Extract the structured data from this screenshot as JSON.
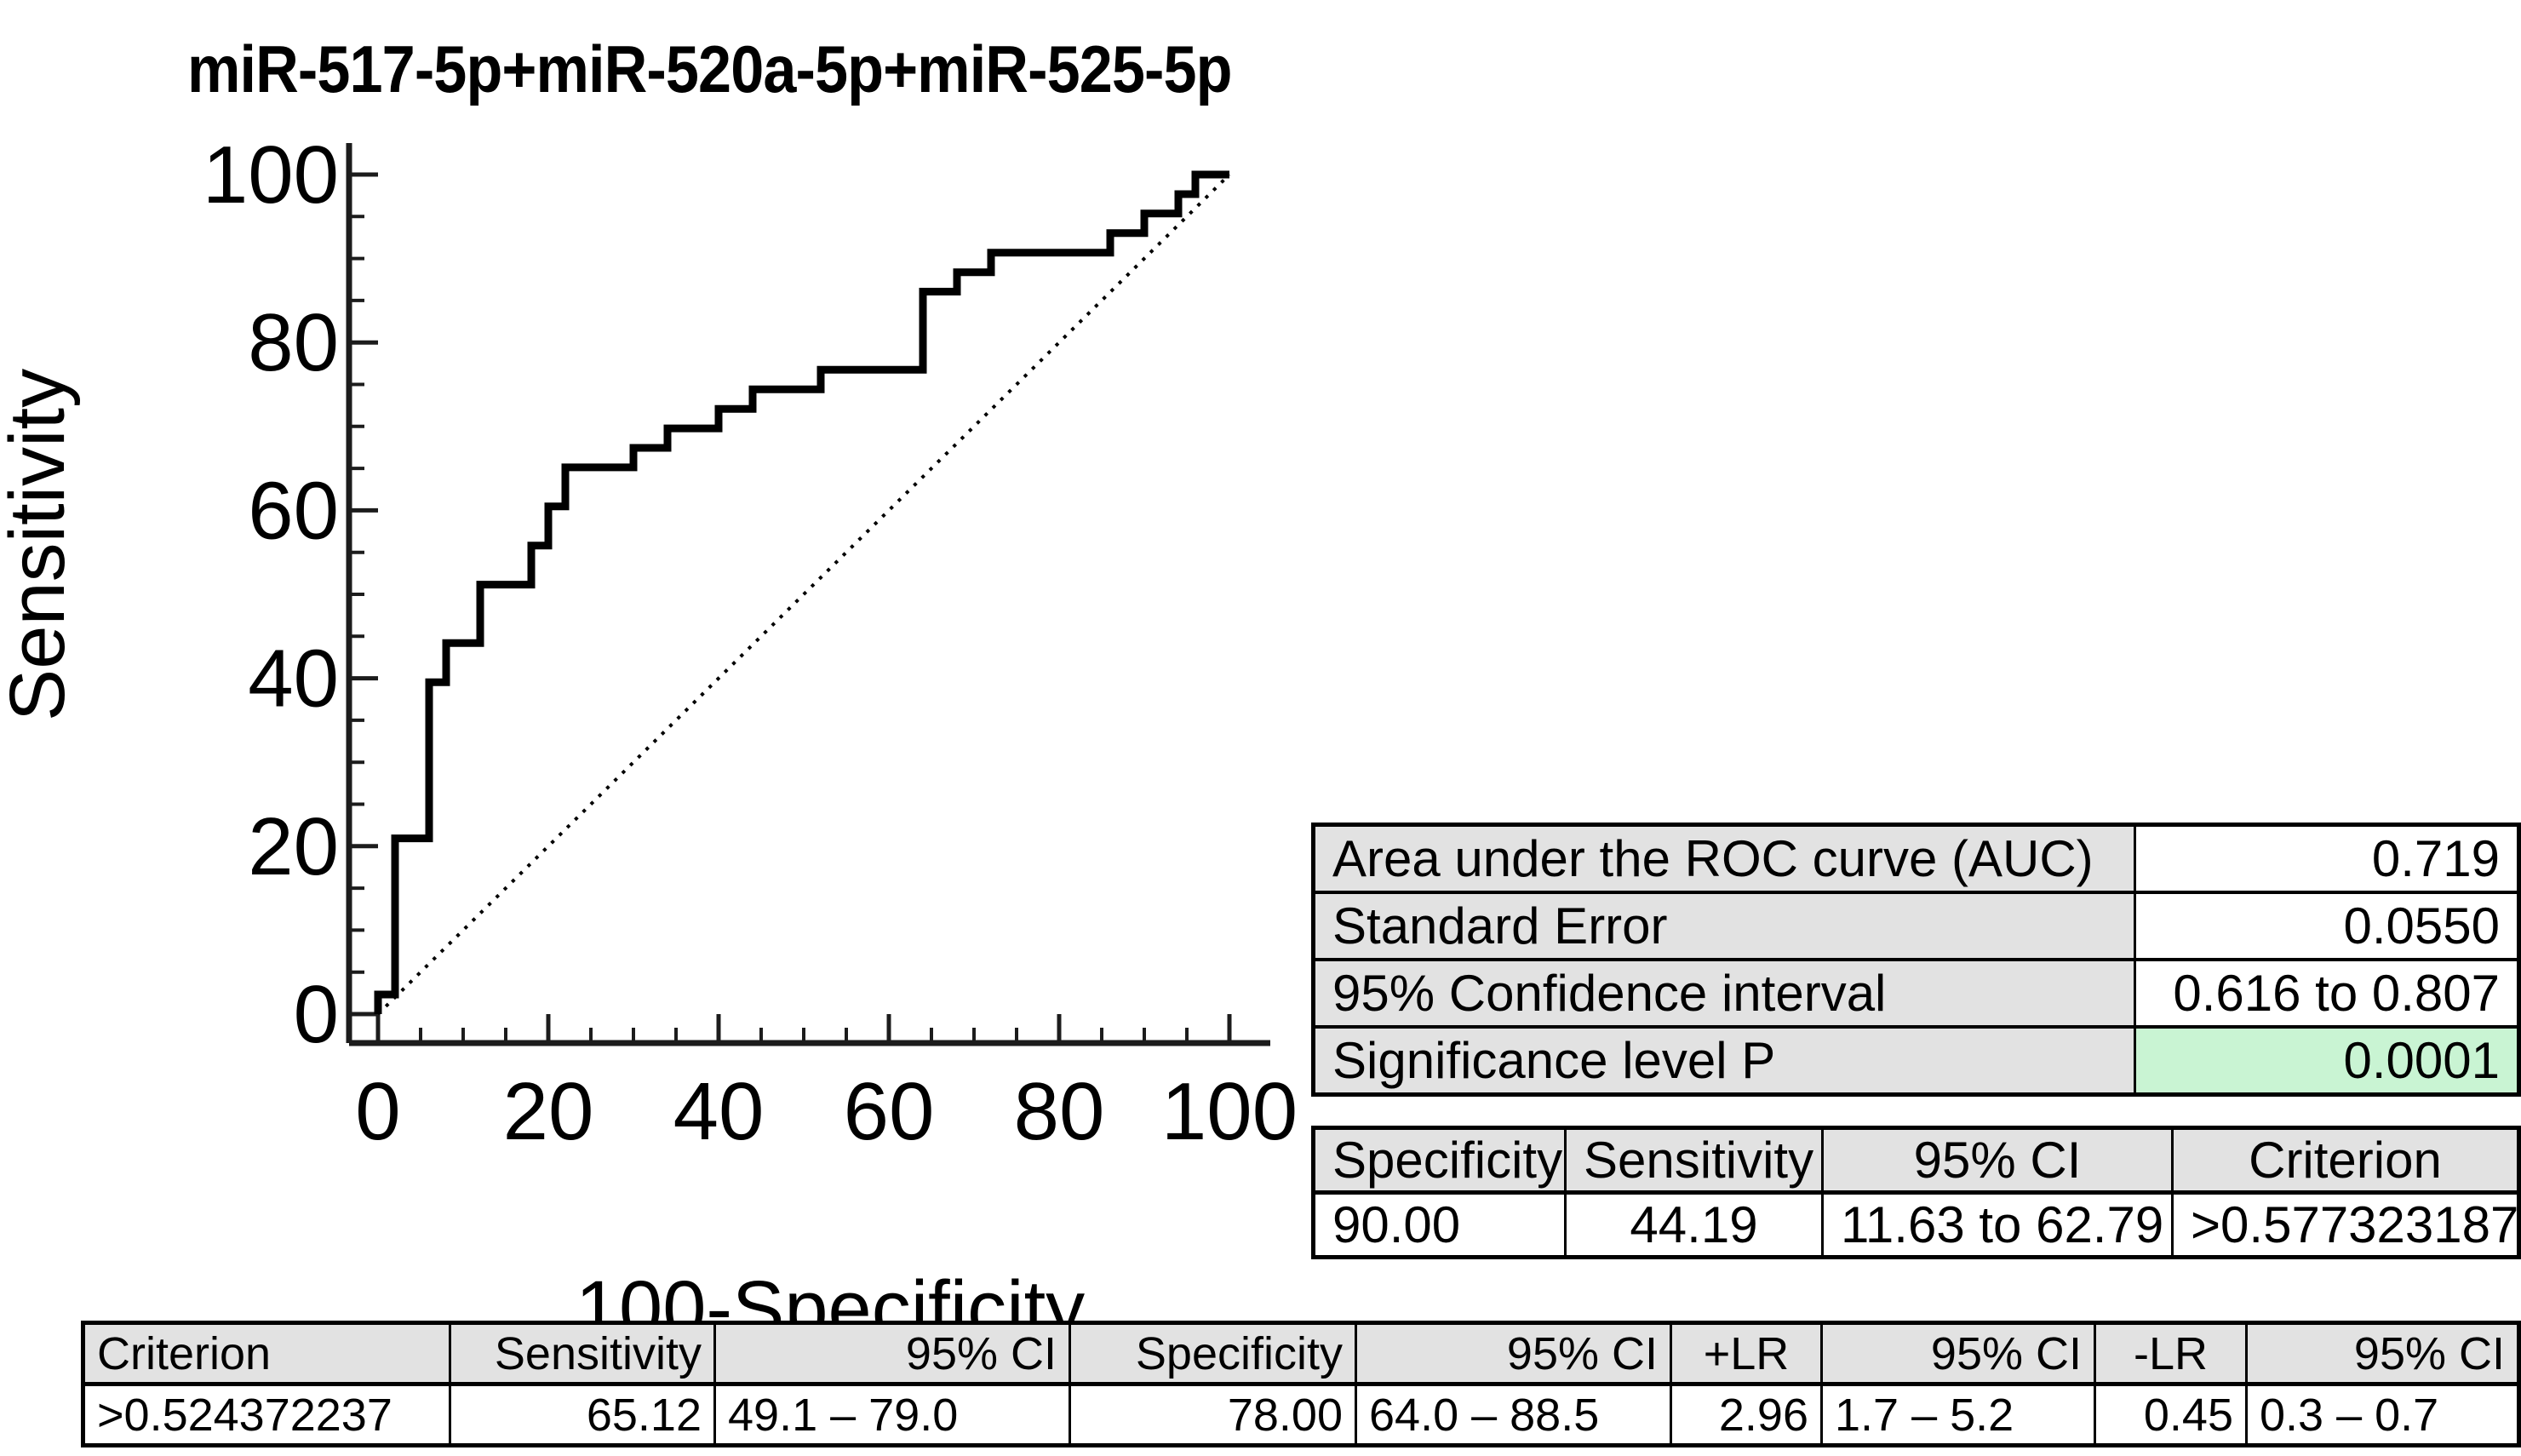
{
  "title": "miR-517-5p+miR-520a-5p+miR-525-5p",
  "colors": {
    "curve": "#000000",
    "axis": "#1c1c1c",
    "table_header_bg": "#e2e2e2",
    "significance_highlight": "#c9f4d3"
  },
  "chart_data": {
    "type": "line",
    "subtype": "roc-curve-step",
    "title": "miR-517-5p+miR-520a-5p+miR-525-5p",
    "xlabel": "100-Specificity",
    "ylabel": "Sensitivity",
    "xlim": [
      0,
      100
    ],
    "ylim": [
      0,
      100
    ],
    "x_major_ticks": [
      0,
      20,
      40,
      60,
      80,
      100
    ],
    "y_major_ticks": [
      0,
      20,
      40,
      60,
      80,
      100
    ],
    "minor_tick_step": 5,
    "grid": false,
    "legend_position": "none",
    "series": [
      {
        "name": "ROC curve",
        "style": "solid",
        "line_width": 9,
        "points": [
          [
            0,
            0
          ],
          [
            0,
            2.33
          ],
          [
            2,
            2.33
          ],
          [
            2,
            20.93
          ],
          [
            6,
            20.93
          ],
          [
            6,
            39.53
          ],
          [
            8,
            39.53
          ],
          [
            8,
            44.19
          ],
          [
            12,
            44.19
          ],
          [
            12,
            51.16
          ],
          [
            18,
            51.16
          ],
          [
            18,
            55.81
          ],
          [
            20,
            55.81
          ],
          [
            20,
            60.47
          ],
          [
            22,
            60.47
          ],
          [
            22,
            65.12
          ],
          [
            30,
            65.12
          ],
          [
            30,
            67.44
          ],
          [
            34,
            67.44
          ],
          [
            34,
            69.77
          ],
          [
            40,
            69.77
          ],
          [
            40,
            72.09
          ],
          [
            44,
            72.09
          ],
          [
            44,
            74.42
          ],
          [
            52,
            74.42
          ],
          [
            52,
            76.74
          ],
          [
            64,
            76.74
          ],
          [
            64,
            86.05
          ],
          [
            68,
            86.05
          ],
          [
            68,
            88.37
          ],
          [
            72,
            88.37
          ],
          [
            72,
            90.7
          ],
          [
            86,
            90.7
          ],
          [
            86,
            93.02
          ],
          [
            90,
            93.02
          ],
          [
            90,
            95.35
          ],
          [
            94,
            95.35
          ],
          [
            94,
            97.67
          ],
          [
            96,
            97.67
          ],
          [
            96,
            100
          ],
          [
            100,
            100
          ]
        ]
      },
      {
        "name": "reference diagonal",
        "style": "dotted",
        "line_width": 4,
        "points": [
          [
            0,
            0
          ],
          [
            100,
            100
          ]
        ]
      }
    ]
  },
  "auc_table": {
    "rows": [
      {
        "label": "Area under the ROC curve (AUC)",
        "value": "0.719"
      },
      {
        "label": "Standard Error",
        "value": "0.0550"
      },
      {
        "label": "95% Confidence interval",
        "value": "0.616 to 0.807"
      },
      {
        "label": "Significance level P",
        "value": "0.0001"
      }
    ]
  },
  "operating_point_table": {
    "headers": [
      "Specificity",
      "Sensitivity",
      "95% CI",
      "Criterion"
    ],
    "row": [
      "90.00",
      "44.19",
      "11.63 to 62.79",
      ">0.577323187"
    ]
  },
  "criterion_table": {
    "headers": [
      "Criterion",
      "Sensitivity",
      "95% CI",
      "Specificity",
      "95% CI",
      "+LR",
      "95% CI",
      "-LR",
      "95% CI"
    ],
    "row": [
      ">0.524372237",
      "65.12",
      "49.1 – 79.0",
      "78.00",
      "64.0 – 88.5",
      "2.96",
      "1.7 – 5.2",
      "0.45",
      "0.3 – 0.7"
    ]
  }
}
